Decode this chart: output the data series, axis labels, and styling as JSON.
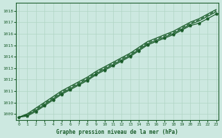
{
  "title": "Graphe pression niveau de la mer (hPa)",
  "yticks": [
    1009,
    1010,
    1011,
    1012,
    1013,
    1014,
    1015,
    1016,
    1017,
    1018
  ],
  "xticks": [
    0,
    1,
    2,
    3,
    4,
    5,
    6,
    7,
    8,
    9,
    10,
    11,
    12,
    13,
    14,
    15,
    16,
    17,
    18,
    19,
    20,
    21,
    22,
    23
  ],
  "background_color": "#cce8e0",
  "grid_color": "#b0d4c4",
  "line_color": "#1a5c2a",
  "text_color": "#1a5c2a",
  "xlim": [
    -0.3,
    23.3
  ],
  "ylim": [
    1008.5,
    1018.7
  ],
  "series": {
    "line1": [
      1008.72,
      1008.82,
      1009.22,
      1009.72,
      1010.22,
      1010.72,
      1011.12,
      1011.52,
      1011.92,
      1012.42,
      1012.82,
      1013.22,
      1013.62,
      1014.02,
      1014.52,
      1015.02,
      1015.32,
      1015.62,
      1015.92,
      1016.32,
      1016.72,
      1016.92,
      1017.32,
      1017.72
    ],
    "line2": [
      1008.72,
      1008.92,
      1009.32,
      1009.82,
      1010.32,
      1010.82,
      1011.22,
      1011.62,
      1012.02,
      1012.52,
      1012.92,
      1013.32,
      1013.72,
      1014.12,
      1014.62,
      1015.12,
      1015.42,
      1015.72,
      1016.02,
      1016.42,
      1016.82,
      1017.12,
      1017.52,
      1017.92
    ],
    "line3": [
      1008.72,
      1009.02,
      1009.52,
      1010.02,
      1010.52,
      1011.02,
      1011.42,
      1011.82,
      1012.22,
      1012.72,
      1013.12,
      1013.52,
      1013.92,
      1014.32,
      1014.82,
      1015.32,
      1015.62,
      1015.92,
      1016.22,
      1016.62,
      1017.02,
      1017.32,
      1017.72,
      1018.12
    ],
    "line4": [
      1008.72,
      1008.92,
      1009.42,
      1009.92,
      1010.42,
      1010.92,
      1011.32,
      1011.72,
      1012.12,
      1012.62,
      1013.02,
      1013.42,
      1013.82,
      1014.22,
      1014.72,
      1015.22,
      1015.52,
      1015.82,
      1016.12,
      1016.52,
      1016.92,
      1017.22,
      1017.62,
      1018.02
    ]
  }
}
